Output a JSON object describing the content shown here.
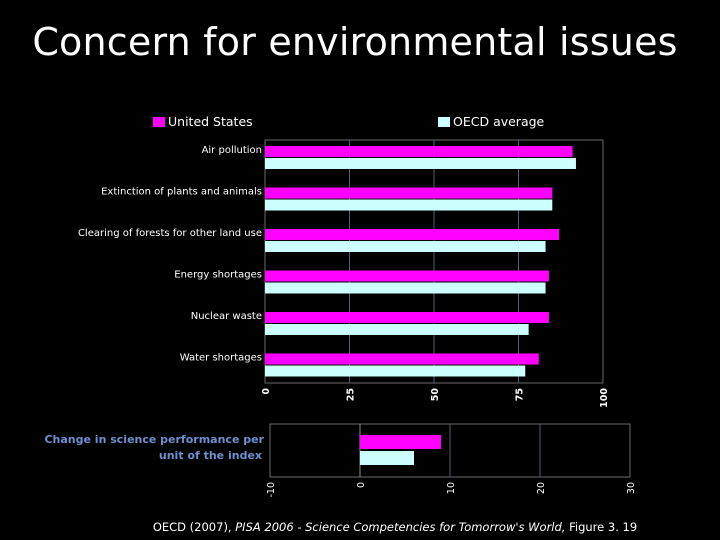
{
  "slide": {
    "title": "Concern for environmental issues"
  },
  "colors": {
    "us": "#ff00ff",
    "oecd": "#ccffff",
    "panel_border": "#6a6a6a",
    "grid": "#4a5f7a",
    "text": "#ffffff",
    "lower_label": "#6f8fd0"
  },
  "chart_data": [
    {
      "type": "bar",
      "orientation": "horizontal",
      "categories": [
        "Air pollution",
        "Extinction of plants and animals",
        "Clearing of forests for other land use",
        "Energy shortages",
        "Nuclear waste",
        "Water shortages"
      ],
      "series": [
        {
          "name": "United States",
          "values": [
            91,
            85,
            87,
            84,
            84,
            81
          ]
        },
        {
          "name": "OECD average",
          "values": [
            92,
            85,
            83,
            83,
            78,
            77
          ]
        }
      ],
      "xlim": [
        0,
        100
      ],
      "xticks": [
        "0",
        "25",
        "50",
        "75",
        "100"
      ],
      "grid": true,
      "legend": "top"
    },
    {
      "type": "bar",
      "orientation": "horizontal",
      "categories": [
        "Change in science performance per unit of the index"
      ],
      "series": [
        {
          "name": "United States",
          "values": [
            9
          ]
        },
        {
          "name": "OECD average",
          "values": [
            6
          ]
        }
      ],
      "xlim": [
        -10,
        30
      ],
      "xticks": [
        "-10",
        "0",
        "10",
        "20",
        "30"
      ],
      "grid": true
    }
  ],
  "caption": {
    "source": "OECD (2007),",
    "publication": "PISA 2006 - Science Competencies for Tomorrow's World,",
    "figure": "Figure 3. 19"
  }
}
